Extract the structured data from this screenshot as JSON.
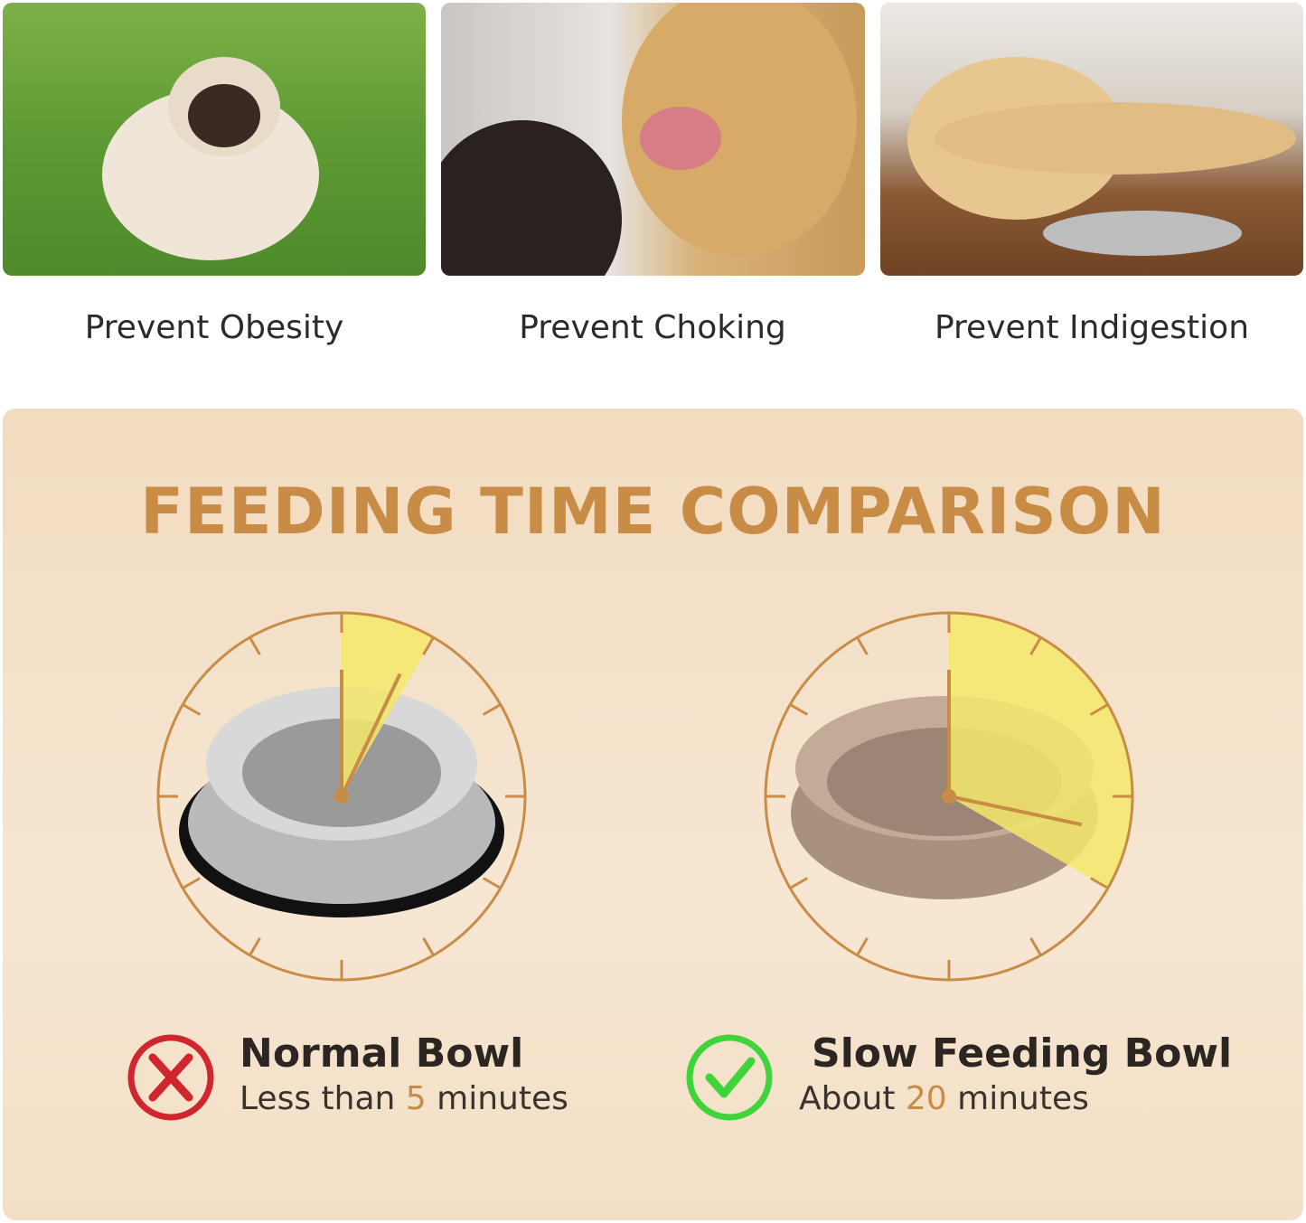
{
  "benefits": [
    {
      "label": "Prevent Obesity",
      "image": "pug-on-grass"
    },
    {
      "label": "Prevent Choking",
      "image": "golden-retriever-mouth-open"
    },
    {
      "label": "Prevent Indigestion",
      "image": "labrador-lying-by-bowl"
    }
  ],
  "comparison": {
    "title": "FEEDING TIME COMPARISON",
    "accent_color": "#c98c46",
    "highlight_color": "#f5e86a",
    "normal": {
      "name": "Normal Bowl",
      "prefix": "Less than ",
      "minutes": "5",
      "suffix": " minutes",
      "icon": "red-x-circle-icon",
      "icon_color": "#d0262e",
      "clock_fraction": 0.0833
    },
    "slow": {
      "name": "Slow Feeding Bowl",
      "prefix": "About ",
      "minutes": "20",
      "suffix": " minutes",
      "icon": "green-check-circle-icon",
      "icon_color": "#3fd43a",
      "clock_fraction": 0.3333
    }
  }
}
